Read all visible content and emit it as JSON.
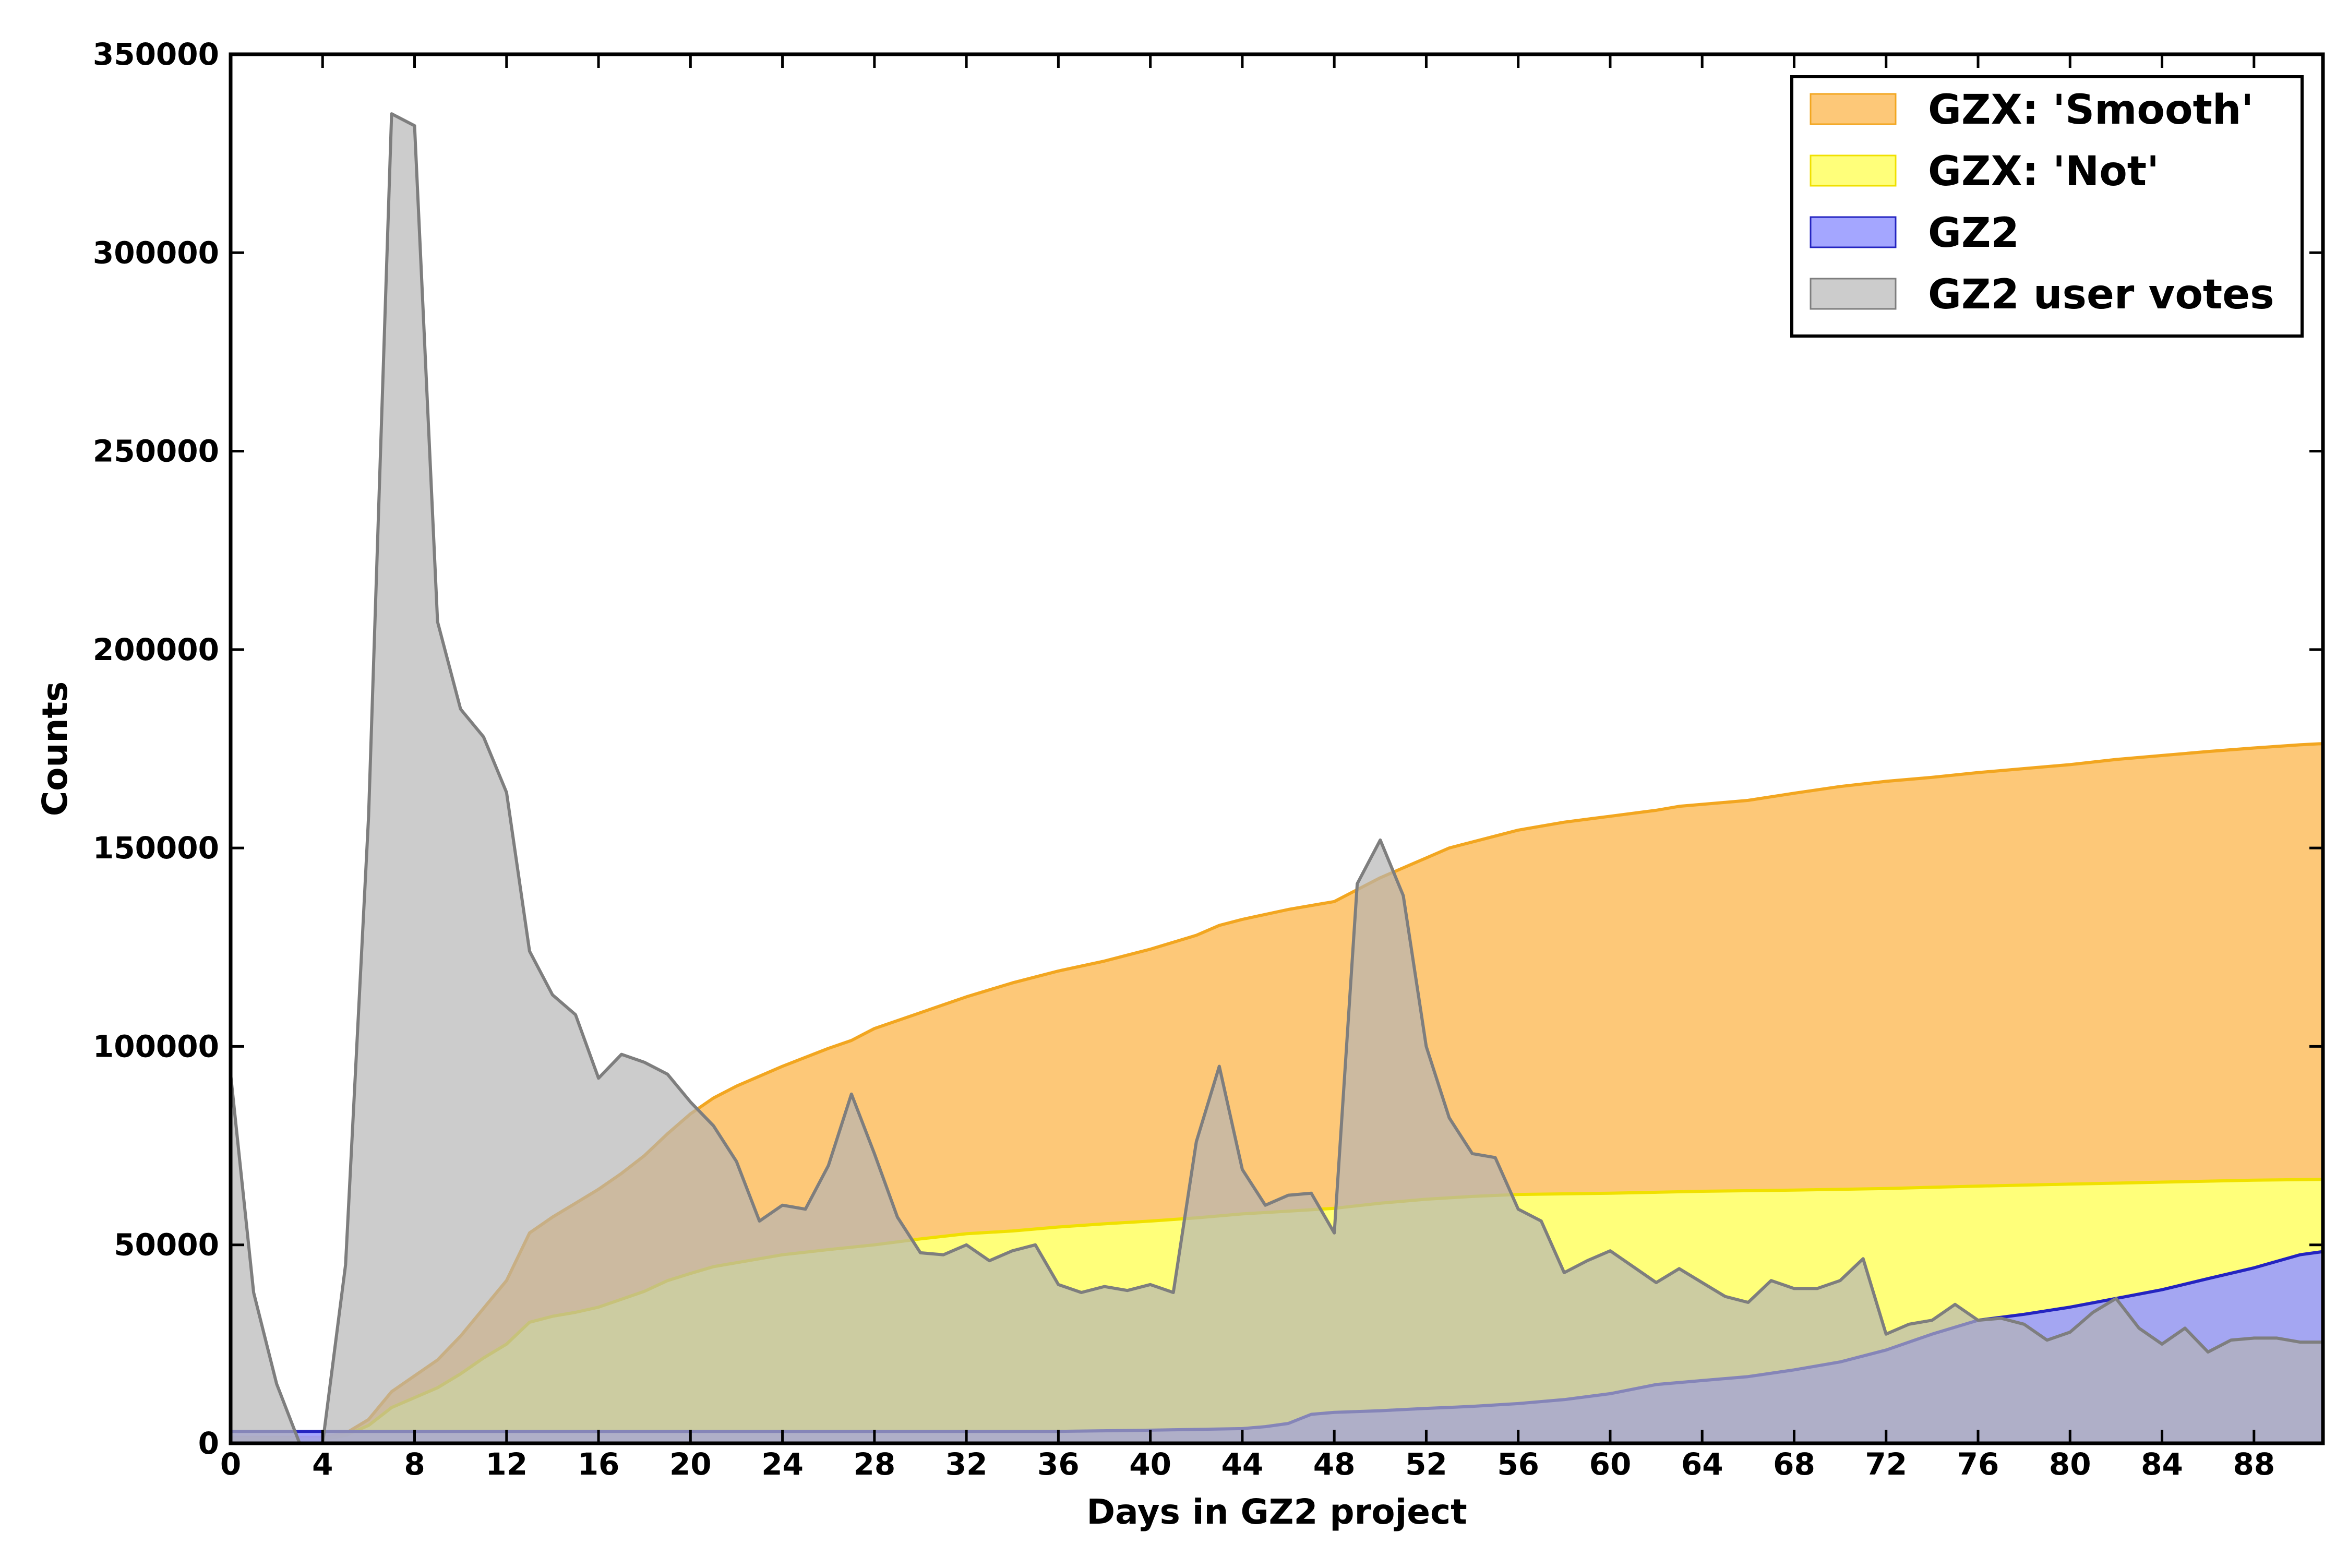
{
  "chart_data": {
    "type": "area",
    "xlabel": "Days in GZ2 project",
    "ylabel": "Counts",
    "xlim": [
      0,
      91
    ],
    "ylim": [
      0,
      350000
    ],
    "xticks": [
      0,
      4,
      8,
      12,
      16,
      20,
      24,
      28,
      32,
      36,
      40,
      44,
      48,
      52,
      56,
      60,
      64,
      68,
      72,
      76,
      80,
      84,
      88
    ],
    "yticks": [
      0,
      50000,
      100000,
      150000,
      200000,
      250000,
      300000,
      350000
    ],
    "grid": false,
    "legend_position": "top-right",
    "series": [
      {
        "name": "GZX: 'Smooth'",
        "fill": "#fdc878",
        "line": "#f2a620",
        "fill_opacity": 1.0,
        "points": [
          [
            0,
            1500
          ],
          [
            4,
            1500
          ],
          [
            5,
            2500
          ],
          [
            6,
            6000
          ],
          [
            7,
            13000
          ],
          [
            8,
            17000
          ],
          [
            9,
            21000
          ],
          [
            10,
            27000
          ],
          [
            11,
            34000
          ],
          [
            12,
            41000
          ],
          [
            13,
            53000
          ],
          [
            14,
            57000
          ],
          [
            15,
            60500
          ],
          [
            16,
            64000
          ],
          [
            17,
            68000
          ],
          [
            18,
            72500
          ],
          [
            19,
            78000
          ],
          [
            20,
            83000
          ],
          [
            21,
            87000
          ],
          [
            22,
            90000
          ],
          [
            24,
            95000
          ],
          [
            26,
            99500
          ],
          [
            27,
            101500
          ],
          [
            28,
            104500
          ],
          [
            30,
            108500
          ],
          [
            32,
            112500
          ],
          [
            34,
            116000
          ],
          [
            35,
            117500
          ],
          [
            36,
            119000
          ],
          [
            38,
            121500
          ],
          [
            40,
            124500
          ],
          [
            42,
            128000
          ],
          [
            43,
            130500
          ],
          [
            44,
            132000
          ],
          [
            46,
            134500
          ],
          [
            48,
            136500
          ],
          [
            49,
            139500
          ],
          [
            50,
            142500
          ],
          [
            52,
            147500
          ],
          [
            53,
            150000
          ],
          [
            55,
            153000
          ],
          [
            56,
            154500
          ],
          [
            58,
            156500
          ],
          [
            60,
            158000
          ],
          [
            62,
            159500
          ],
          [
            63,
            160500
          ],
          [
            65,
            161500
          ],
          [
            66,
            162000
          ],
          [
            68,
            163800
          ],
          [
            70,
            165500
          ],
          [
            72,
            166800
          ],
          [
            74,
            167800
          ],
          [
            76,
            169000
          ],
          [
            78,
            170000
          ],
          [
            80,
            171000
          ],
          [
            82,
            172300
          ],
          [
            84,
            173300
          ],
          [
            86,
            174300
          ],
          [
            88,
            175200
          ],
          [
            90,
            176000
          ],
          [
            91,
            176300
          ]
        ]
      },
      {
        "name": "GZX: 'Not'",
        "fill": "#ffff7a",
        "line": "#f0e000",
        "fill_opacity": 1.0,
        "points": [
          [
            0,
            1000
          ],
          [
            4,
            1000
          ],
          [
            5,
            2000
          ],
          [
            6,
            4500
          ],
          [
            7,
            9000
          ],
          [
            8,
            11500
          ],
          [
            9,
            14000
          ],
          [
            10,
            17500
          ],
          [
            11,
            21500
          ],
          [
            12,
            25000
          ],
          [
            13,
            30500
          ],
          [
            14,
            32000
          ],
          [
            15,
            33000
          ],
          [
            16,
            34300
          ],
          [
            17,
            36300
          ],
          [
            18,
            38300
          ],
          [
            19,
            41000
          ],
          [
            20,
            42800
          ],
          [
            21,
            44500
          ],
          [
            22,
            45500
          ],
          [
            24,
            47500
          ],
          [
            26,
            48800
          ],
          [
            28,
            50000
          ],
          [
            30,
            51500
          ],
          [
            32,
            52800
          ],
          [
            34,
            53500
          ],
          [
            36,
            54500
          ],
          [
            38,
            55300
          ],
          [
            40,
            56000
          ],
          [
            42,
            56800
          ],
          [
            44,
            57800
          ],
          [
            46,
            58500
          ],
          [
            48,
            59200
          ],
          [
            50,
            60500
          ],
          [
            52,
            61500
          ],
          [
            54,
            62200
          ],
          [
            56,
            62700
          ],
          [
            60,
            63000
          ],
          [
            64,
            63500
          ],
          [
            68,
            63800
          ],
          [
            72,
            64200
          ],
          [
            76,
            64800
          ],
          [
            80,
            65300
          ],
          [
            84,
            65800
          ],
          [
            88,
            66300
          ],
          [
            91,
            66500
          ]
        ]
      },
      {
        "name": "GZ2",
        "fill": "#9a9cff",
        "line": "#2424c0",
        "fill_opacity": 0.9,
        "points": [
          [
            0,
            3000
          ],
          [
            20,
            3000
          ],
          [
            36,
            3000
          ],
          [
            40,
            3300
          ],
          [
            44,
            3700
          ],
          [
            45,
            4200
          ],
          [
            46,
            5000
          ],
          [
            47,
            7300
          ],
          [
            48,
            7800
          ],
          [
            50,
            8200
          ],
          [
            52,
            8800
          ],
          [
            54,
            9300
          ],
          [
            56,
            10000
          ],
          [
            58,
            11000
          ],
          [
            60,
            12500
          ],
          [
            62,
            14800
          ],
          [
            64,
            15800
          ],
          [
            66,
            16800
          ],
          [
            68,
            18500
          ],
          [
            70,
            20500
          ],
          [
            72,
            23500
          ],
          [
            74,
            27500
          ],
          [
            76,
            31000
          ],
          [
            78,
            32500
          ],
          [
            80,
            34300
          ],
          [
            82,
            36500
          ],
          [
            84,
            38700
          ],
          [
            86,
            41500
          ],
          [
            88,
            44200
          ],
          [
            90,
            47500
          ],
          [
            91,
            48300
          ]
        ]
      },
      {
        "name": "GZ2 user votes",
        "fill": "#b4b4b4",
        "line": "#7e7e7e",
        "fill_opacity": 0.68,
        "points": [
          [
            0,
            93000
          ],
          [
            1,
            38000
          ],
          [
            2,
            15000
          ],
          [
            3,
            0
          ],
          [
            4,
            0
          ],
          [
            5,
            45000
          ],
          [
            6,
            158000
          ],
          [
            7,
            335000
          ],
          [
            8,
            332000
          ],
          [
            9,
            207000
          ],
          [
            10,
            185000
          ],
          [
            11,
            178000
          ],
          [
            12,
            164000
          ],
          [
            13,
            124000
          ],
          [
            14,
            113000
          ],
          [
            15,
            108000
          ],
          [
            16,
            92000
          ],
          [
            17,
            98000
          ],
          [
            18,
            96000
          ],
          [
            19,
            93000
          ],
          [
            20,
            86000
          ],
          [
            21,
            80000
          ],
          [
            22,
            71000
          ],
          [
            23,
            56000
          ],
          [
            24,
            60000
          ],
          [
            25,
            59000
          ],
          [
            26,
            70000
          ],
          [
            27,
            88000
          ],
          [
            28,
            73000
          ],
          [
            29,
            57000
          ],
          [
            30,
            48000
          ],
          [
            31,
            47500
          ],
          [
            32,
            50000
          ],
          [
            33,
            46000
          ],
          [
            34,
            48500
          ],
          [
            35,
            50000
          ],
          [
            36,
            40000
          ],
          [
            37,
            38000
          ],
          [
            38,
            39500
          ],
          [
            39,
            38500
          ],
          [
            40,
            40000
          ],
          [
            41,
            38000
          ],
          [
            42,
            76000
          ],
          [
            43,
            95000
          ],
          [
            44,
            69000
          ],
          [
            45,
            60000
          ],
          [
            46,
            62500
          ],
          [
            47,
            63000
          ],
          [
            48,
            53000
          ],
          [
            49,
            141000
          ],
          [
            50,
            152000
          ],
          [
            51,
            138000
          ],
          [
            52,
            100000
          ],
          [
            53,
            82000
          ],
          [
            54,
            73000
          ],
          [
            55,
            72000
          ],
          [
            56,
            59000
          ],
          [
            57,
            56000
          ],
          [
            58,
            43000
          ],
          [
            59,
            46000
          ],
          [
            60,
            48500
          ],
          [
            61,
            44500
          ],
          [
            62,
            40500
          ],
          [
            63,
            44000
          ],
          [
            64,
            40500
          ],
          [
            65,
            37000
          ],
          [
            66,
            35500
          ],
          [
            67,
            41000
          ],
          [
            68,
            39000
          ],
          [
            69,
            39000
          ],
          [
            70,
            41000
          ],
          [
            71,
            46500
          ],
          [
            72,
            27500
          ],
          [
            73,
            30000
          ],
          [
            74,
            31000
          ],
          [
            75,
            35000
          ],
          [
            76,
            31000
          ],
          [
            77,
            31500
          ],
          [
            78,
            30000
          ],
          [
            79,
            26000
          ],
          [
            80,
            28000
          ],
          [
            81,
            33000
          ],
          [
            82,
            36500
          ],
          [
            83,
            29000
          ],
          [
            84,
            25000
          ],
          [
            85,
            29000
          ],
          [
            86,
            23000
          ],
          [
            87,
            26000
          ],
          [
            88,
            26500
          ],
          [
            89,
            26500
          ],
          [
            90,
            25500
          ],
          [
            91,
            25500
          ]
        ]
      }
    ]
  }
}
